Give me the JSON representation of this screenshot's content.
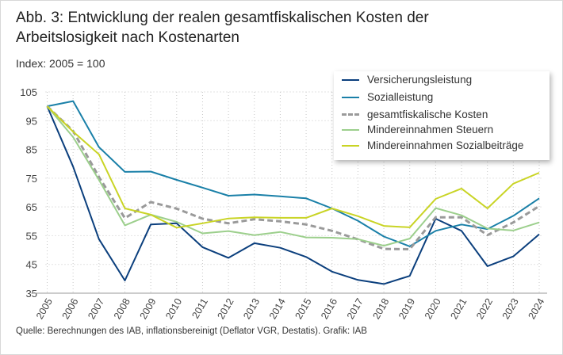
{
  "chart_data": {
    "type": "line",
    "title": "Abb. 3: Entwicklung der realen gesamtfiskalischen Kosten der Arbeitslosigkeit nach Kostenarten",
    "subtitle": "Index: 2005 = 100",
    "source": "Quelle: Berechnungen des IAB, inflationsbereinigt (Deflator VGR, Destatis). Grafik: IAB",
    "xlabel": "",
    "ylabel": "",
    "ylim": [
      35,
      105
    ],
    "yticks": [
      35,
      45,
      55,
      65,
      75,
      85,
      95,
      105
    ],
    "grid": true,
    "legend_position": "top-right",
    "x": [
      "2005",
      "2006",
      "2007",
      "2008",
      "2009",
      "2010",
      "2011",
      "2012",
      "2013",
      "2014",
      "2015",
      "2016",
      "2017",
      "2018",
      "2019",
      "2020",
      "2021",
      "2022",
      "2023",
      "2024"
    ],
    "series": [
      {
        "name": "Versicherungsleistung",
        "color": "#0b3f7d",
        "dashed": false,
        "values": [
          100,
          79,
          53.8,
          39.4,
          58.9,
          59.3,
          51,
          47.3,
          52.4,
          50.8,
          47.6,
          42.5,
          39.6,
          38.2,
          41,
          60.9,
          56.7,
          44.4,
          47.8,
          55.5
        ]
      },
      {
        "name": "Sozialleistung",
        "color": "#1a80a8",
        "dashed": false,
        "values": [
          100,
          101.8,
          85.8,
          77.2,
          77.3,
          74.4,
          71.7,
          68.9,
          69.3,
          68.7,
          68,
          64.5,
          60.2,
          54.7,
          51.3,
          56.7,
          58.9,
          57.3,
          61.9,
          68
        ]
      },
      {
        "name": "gesamtfiskalische Kosten",
        "color": "#9a9a9a",
        "dashed": true,
        "values": [
          100,
          91.4,
          75.4,
          61.1,
          66.7,
          64.4,
          60.9,
          59.3,
          60.7,
          60,
          58.9,
          56.7,
          53.7,
          50.4,
          50.3,
          61.4,
          61.4,
          55.2,
          59.6,
          65.3
        ]
      },
      {
        "name": "Mindereinnahmen Steuern",
        "color": "#9ccf8c",
        "dashed": false,
        "values": [
          100,
          89.3,
          74.4,
          58.6,
          62.3,
          59.8,
          55.8,
          56.6,
          55.2,
          56.3,
          54.4,
          54.3,
          53.8,
          51.5,
          54,
          64.6,
          62.1,
          57.5,
          56.8,
          59.6
        ]
      },
      {
        "name": "Mindereinnahmen Sozialbeiträge",
        "color": "#c9d425",
        "dashed": false,
        "values": [
          100,
          91.2,
          83.3,
          64.5,
          62.3,
          57.8,
          59.3,
          61,
          61.4,
          61.2,
          61.2,
          64.5,
          61.8,
          58.4,
          57.9,
          67.8,
          71.4,
          64.5,
          73.1,
          76.9
        ]
      }
    ]
  }
}
